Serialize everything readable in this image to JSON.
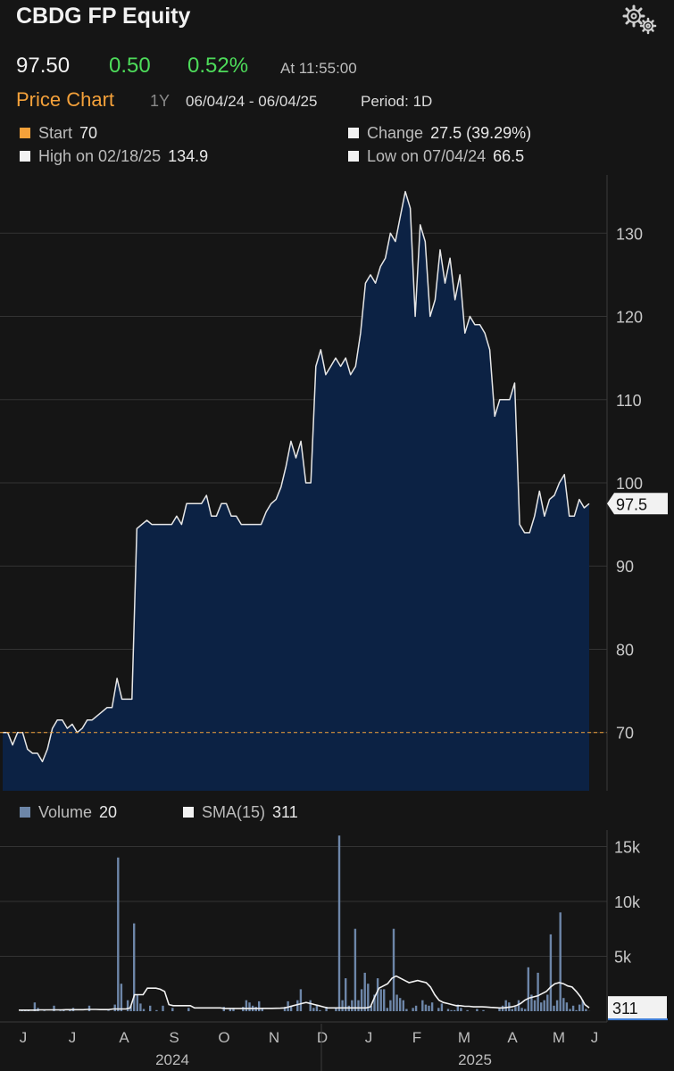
{
  "header": {
    "title": "CBDG FP Equity",
    "price": "97.50",
    "change": "0.50",
    "change_pct": "0.52%",
    "as_of": "At 11:55:00",
    "chart_label": "Price Chart",
    "range_button": "1Y",
    "date_range": "06/04/24 - 06/04/25",
    "period": "Period: 1D",
    "settings_icon": "gears-icon"
  },
  "stats": {
    "start_label": "Start",
    "start_value": "70",
    "change_label": "Change",
    "change_value": "27.5 (39.29%)",
    "high_label": "High on 02/18/25",
    "high_value": "134.9",
    "low_label": "Low on 07/04/24",
    "low_value": "66.5"
  },
  "volume_legend": {
    "volume_label": "Volume",
    "volume_value": "20",
    "sma_label": "SMA(15)",
    "sma_value": "311"
  },
  "colors": {
    "background": "#151515",
    "area_fill": "#0c2244",
    "price_line": "#e6e6e6",
    "start_line": "#f4a13a",
    "positive": "#4ddb5a",
    "volume_bar": "#6d86a8",
    "grid": "#333333"
  },
  "chart_data": [
    {
      "type": "area",
      "title": "Price Chart",
      "series": [
        {
          "values": [
            70,
            70,
            68.5,
            70,
            70,
            68,
            67.5,
            67.5,
            66.5,
            68,
            70.5,
            71.5,
            71.5,
            70.5,
            71,
            70,
            70.5,
            71.5,
            71.5,
            72,
            72.5,
            73,
            73,
            76.5,
            74,
            74,
            74,
            94.5,
            95,
            95.5,
            95,
            95,
            95,
            95,
            95,
            96,
            95,
            97.5,
            97.5,
            97.5,
            97.5,
            98.5,
            96,
            96,
            97.5,
            97.5,
            96,
            96,
            95,
            95,
            95,
            95,
            95,
            96.5,
            97.5,
            98,
            99.5,
            102,
            105,
            103,
            105,
            100,
            100,
            114,
            116,
            113,
            114,
            115,
            114,
            115,
            113,
            114,
            118,
            124,
            125,
            124,
            126,
            127,
            130,
            129,
            132,
            135,
            133,
            120,
            131,
            129,
            120,
            122,
            128,
            124,
            127,
            122,
            125,
            118,
            120,
            119,
            119,
            118,
            116,
            108,
            110,
            110,
            110,
            112,
            95,
            94,
            94,
            96,
            99,
            96,
            98,
            98.5,
            100,
            101,
            96,
            96,
            98,
            97,
            97.5
          ]
        }
      ],
      "x_axis_labels": [
        "J",
        "J",
        "A",
        "S",
        "O",
        "N",
        "D",
        "J",
        "F",
        "M",
        "A",
        "M",
        "J"
      ],
      "x_axis_years": [
        "2024",
        "2025"
      ],
      "y_ticks": [
        70,
        80,
        90,
        100,
        110,
        120,
        130
      ],
      "ylim": [
        63,
        137
      ],
      "reference_line": 70,
      "last_value_label": "97.5",
      "grid": true
    },
    {
      "type": "bar",
      "title": "",
      "series": [
        {
          "name": "Volume",
          "values": [
            0,
            100,
            50,
            50,
            0,
            800,
            300,
            0,
            50,
            0,
            0,
            500,
            0,
            50,
            100,
            0,
            100,
            300,
            0,
            0,
            0,
            0,
            500,
            0,
            0,
            0,
            0,
            0,
            50,
            0,
            600,
            14000,
            2500,
            0,
            1000,
            500,
            8000,
            1500,
            700,
            200,
            0,
            500,
            0,
            100,
            0,
            500,
            0,
            0,
            300,
            0,
            0,
            0,
            0,
            300,
            0,
            0,
            0,
            0,
            0,
            0,
            0,
            0,
            0,
            0,
            400,
            0,
            200,
            300,
            0,
            0,
            400,
            1000,
            800,
            500,
            400,
            900,
            200,
            0,
            0,
            0,
            0,
            0,
            0,
            400,
            900,
            500,
            0,
            1000,
            2000,
            0,
            0,
            1000,
            300,
            600,
            100,
            0,
            400,
            0,
            0,
            300,
            16000,
            1000,
            3000,
            500,
            1000,
            7500,
            1000,
            2000,
            3500,
            2500,
            500,
            1500,
            3000,
            2000,
            2000,
            300,
            1000,
            7500,
            1500,
            1200,
            1000,
            200,
            0,
            300,
            500,
            0,
            1000,
            600,
            500,
            800,
            0,
            300,
            700,
            0,
            200,
            100,
            100,
            600,
            300,
            0,
            100,
            0,
            0,
            200,
            0,
            100,
            0,
            0,
            0,
            0,
            300,
            500,
            1000,
            800,
            200,
            400,
            1000,
            300,
            200,
            4000,
            1500,
            1000,
            3500,
            800,
            1000,
            1500,
            7000,
            500,
            1000,
            9000,
            1200,
            800,
            200,
            500,
            100,
            600,
            1000,
            200,
            20
          ]
        },
        {
          "name": "SMA(15)",
          "type": "line",
          "values": [
            100,
            100,
            100,
            100,
            100,
            120,
            120,
            120,
            120,
            120,
            120,
            140,
            140,
            140,
            140,
            140,
            160,
            160,
            160,
            150,
            150,
            150,
            200,
            200,
            200,
            200,
            300,
            1500,
            1500,
            1500,
            2100,
            2100,
            2100,
            2000,
            1800,
            600,
            500,
            500,
            500,
            500,
            500,
            300,
            300,
            300,
            300,
            300,
            300,
            300,
            250,
            250,
            250,
            250,
            250,
            250,
            250,
            250,
            250,
            260,
            260,
            260,
            270,
            280,
            300,
            400,
            500,
            600,
            700,
            800,
            700,
            600,
            500,
            400,
            300,
            300,
            300,
            300,
            300,
            300,
            300,
            300,
            300,
            300,
            400,
            1300,
            2100,
            2300,
            2500,
            3000,
            3200,
            3000,
            2800,
            2600,
            2700,
            2800,
            2700,
            2600,
            2200,
            1500,
            1000,
            800,
            700,
            600,
            500,
            500,
            450,
            450,
            400,
            400,
            400,
            380,
            350,
            330,
            300,
            300,
            350,
            400,
            500,
            700,
            1000,
            1200,
            1300,
            1400,
            1600,
            1800,
            2200,
            2500,
            2600,
            2500,
            2300,
            2200,
            1800,
            1300,
            600,
            311
          ]
        }
      ],
      "y_ticks": [
        "5k",
        "10k",
        "15k"
      ],
      "ylim": [
        0,
        16500
      ],
      "last_value_label": "311",
      "grid": true
    }
  ]
}
